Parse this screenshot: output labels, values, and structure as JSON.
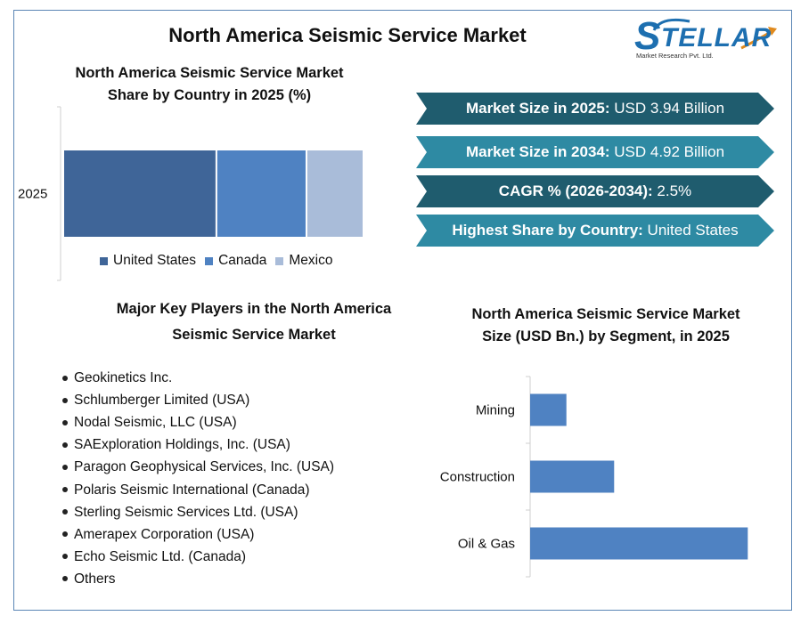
{
  "title": "North America Seismic Service Market",
  "logo": {
    "name": "STELLAR",
    "subtitle": "Market Research Pvt. Ltd."
  },
  "stats": [
    {
      "label": "Market Size in 2025:",
      "value": " USD 3.94 Billion",
      "color": "#1f5c6e"
    },
    {
      "label": "Market Size in 2034:",
      "value": " USD 4.92 Billion",
      "color": "#2e8aa3"
    },
    {
      "label": "CAGR % (2026-2034):",
      "value": " 2.5%",
      "color": "#1f5c6e"
    },
    {
      "label": "Highest Share by Country:",
      "value": " United States",
      "color": "#2e8aa3"
    }
  ],
  "players_title_line1": "Major Key Players in the North America",
  "players_title_line2": "Seismic Service Market",
  "players": [
    "Geokinetics Inc.",
    "Schlumberger Limited (USA)",
    "Nodal Seismic, LLC (USA)",
    "SAExploration Holdings, Inc. (USA)",
    "Paragon Geophysical Services, Inc. (USA)",
    "Polaris Seismic International (Canada)",
    "Sterling Seismic Services Ltd. (USA)",
    "Amerapex Corporation (USA)",
    "Echo Seismic Ltd. (Canada)",
    "Others"
  ],
  "chart_data": [
    {
      "type": "bar",
      "stacked": true,
      "orientation": "horizontal",
      "title_line1": "North America Seismic Service Market",
      "title_line2": "Share by Country in 2025 (%)",
      "categories": [
        "2025"
      ],
      "series": [
        {
          "name": "United States",
          "values": [
            51
          ],
          "color": "#3f6598"
        },
        {
          "name": "Canada",
          "values": [
            30
          ],
          "color": "#4f82c2"
        },
        {
          "name": "Mexico",
          "values": [
            19
          ],
          "color": "#a9bcd9"
        }
      ],
      "xlim": [
        0,
        100
      ],
      "legend": "bottom",
      "grid": false
    },
    {
      "type": "bar",
      "orientation": "horizontal",
      "title_line1": "North America Seismic Service Market",
      "title_line2": "Size (USD Bn.) by Segment, in 2025",
      "categories": [
        "Mining",
        "Construction",
        "Oil & Gas"
      ],
      "values": [
        0.38,
        0.88,
        2.28
      ],
      "color": "#4f82c2",
      "xlim": [
        0,
        2.8
      ],
      "grid": false,
      "legend": "none"
    }
  ]
}
